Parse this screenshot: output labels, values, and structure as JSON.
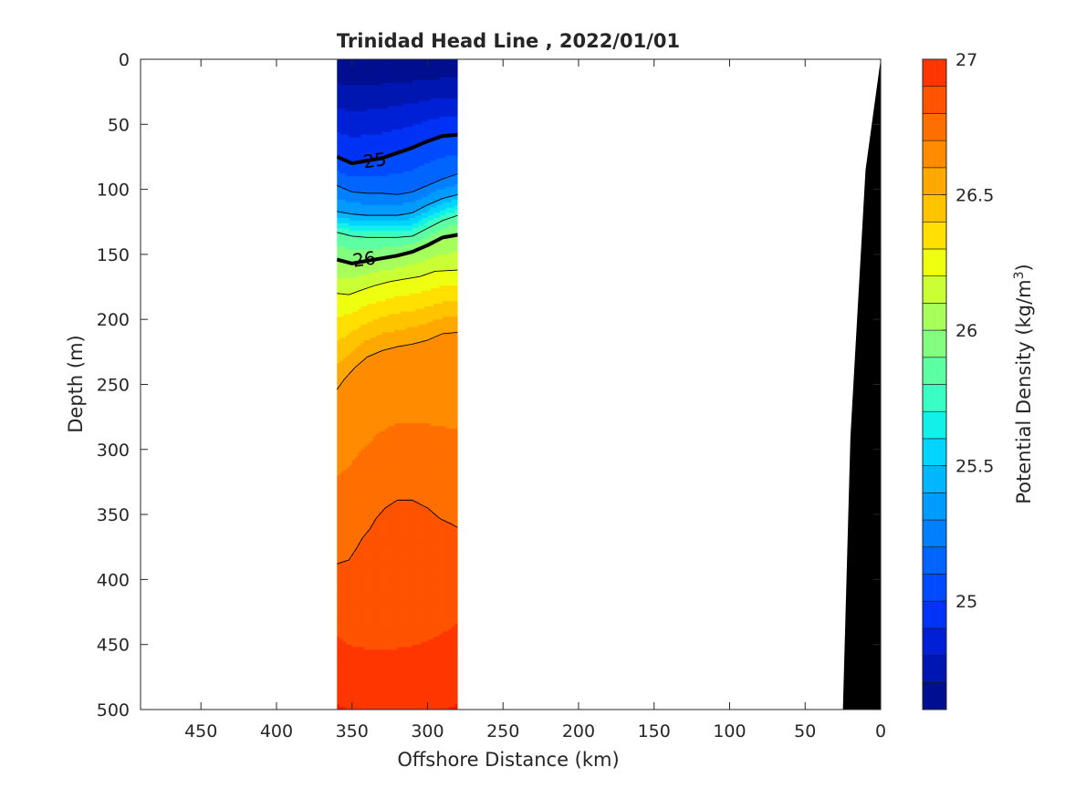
{
  "chart_data": {
    "type": "contour-section",
    "title": "Trinidad Head Line , 2022/01/01",
    "xlabel": "Offshore Distance (km)",
    "ylabel": "Depth (m)",
    "xlim": [
      490,
      0
    ],
    "ylim": [
      0,
      500
    ],
    "x_reversed": true,
    "y_reversed": true,
    "xticks": [
      450,
      400,
      350,
      300,
      250,
      200,
      150,
      100,
      50,
      0
    ],
    "yticks": [
      0,
      50,
      100,
      150,
      200,
      250,
      300,
      350,
      400,
      450,
      500
    ],
    "data_extent_x": [
      360,
      280
    ],
    "colorbar": {
      "label": "Potential Density (kg/m³)",
      "label_main": "Potential Density (kg/m",
      "label_sup": "3",
      "label_end": ")",
      "range": [
        24.6,
        27.0
      ],
      "ticks": [
        "25",
        "25.5",
        "26",
        "26.5",
        "27"
      ],
      "tick_values": [
        25,
        25.5,
        26,
        26.5,
        27
      ],
      "levels_step": 0.1,
      "colors": [
        "#000f8f",
        "#0016b1",
        "#0020d6",
        "#0033f6",
        "#004bff",
        "#0065ff",
        "#0080ff",
        "#009bff",
        "#00b7ff",
        "#00d4ff",
        "#12f0ea",
        "#3affc4",
        "#5effa2",
        "#82ff7e",
        "#a6ff5a",
        "#cbff35",
        "#efff10",
        "#ffe000",
        "#ffc400",
        "#ffa800",
        "#ff8c00",
        "#ff6f00",
        "#ff5300",
        "#ff3600",
        "#f01b00",
        "#d00000",
        "#a80000"
      ]
    },
    "contour_labels": [
      {
        "text": "25",
        "x": 335,
        "y": 77
      },
      {
        "text": "26",
        "x": 342,
        "y": 153
      }
    ],
    "isopycnals": [
      {
        "value": 25.0,
        "bold": true,
        "points": [
          [
            360,
            75
          ],
          [
            350,
            80
          ],
          [
            340,
            78
          ],
          [
            330,
            76
          ],
          [
            320,
            72
          ],
          [
            310,
            68
          ],
          [
            300,
            63
          ],
          [
            290,
            59
          ],
          [
            280,
            58
          ]
        ]
      },
      {
        "value": 25.2,
        "bold": false,
        "points": [
          [
            360,
            97
          ],
          [
            350,
            102
          ],
          [
            340,
            103
          ],
          [
            330,
            103
          ],
          [
            320,
            104
          ],
          [
            310,
            102
          ],
          [
            300,
            97
          ],
          [
            290,
            92
          ],
          [
            280,
            88
          ]
        ]
      },
      {
        "value": 25.4,
        "bold": false,
        "points": [
          [
            360,
            117
          ],
          [
            350,
            119
          ],
          [
            340,
            120
          ],
          [
            330,
            120
          ],
          [
            320,
            120
          ],
          [
            310,
            118
          ],
          [
            300,
            112
          ],
          [
            290,
            107
          ],
          [
            280,
            104
          ]
        ]
      },
      {
        "value": 25.8,
        "bold": false,
        "points": [
          [
            360,
            133
          ],
          [
            350,
            136
          ],
          [
            340,
            137
          ],
          [
            330,
            137
          ],
          [
            320,
            137
          ],
          [
            310,
            136
          ],
          [
            300,
            130
          ],
          [
            290,
            124
          ],
          [
            280,
            120
          ]
        ]
      },
      {
        "value": 26.0,
        "bold": true,
        "points": [
          [
            360,
            154
          ],
          [
            350,
            157
          ],
          [
            340,
            155
          ],
          [
            330,
            153
          ],
          [
            320,
            151
          ],
          [
            310,
            148
          ],
          [
            300,
            143
          ],
          [
            290,
            137
          ],
          [
            280,
            135
          ]
        ]
      },
      {
        "value": 26.2,
        "bold": false,
        "points": [
          [
            360,
            180
          ],
          [
            352,
            181
          ],
          [
            345,
            178
          ],
          [
            335,
            174
          ],
          [
            325,
            171
          ],
          [
            315,
            169
          ],
          [
            305,
            167
          ],
          [
            295,
            163
          ],
          [
            280,
            162
          ]
        ]
      },
      {
        "value": 26.6,
        "bold": false,
        "points": [
          [
            360,
            254
          ],
          [
            355,
            246
          ],
          [
            348,
            237
          ],
          [
            340,
            229
          ],
          [
            330,
            224
          ],
          [
            320,
            221
          ],
          [
            310,
            219
          ],
          [
            300,
            216
          ],
          [
            290,
            211
          ],
          [
            280,
            210
          ]
        ]
      },
      {
        "value": 26.8,
        "bold": false,
        "points": [
          [
            360,
            388
          ],
          [
            352,
            385
          ],
          [
            347,
            376
          ],
          [
            343,
            368
          ],
          [
            338,
            361
          ],
          [
            334,
            353
          ],
          [
            328,
            345
          ],
          [
            320,
            339
          ],
          [
            310,
            339
          ],
          [
            300,
            345
          ],
          [
            292,
            353
          ],
          [
            285,
            357
          ],
          [
            280,
            360
          ]
        ]
      }
    ],
    "bathymetry": [
      [
        0,
        0
      ],
      [
        10,
        85
      ],
      [
        20,
        290
      ],
      [
        25,
        500
      ]
    ]
  }
}
